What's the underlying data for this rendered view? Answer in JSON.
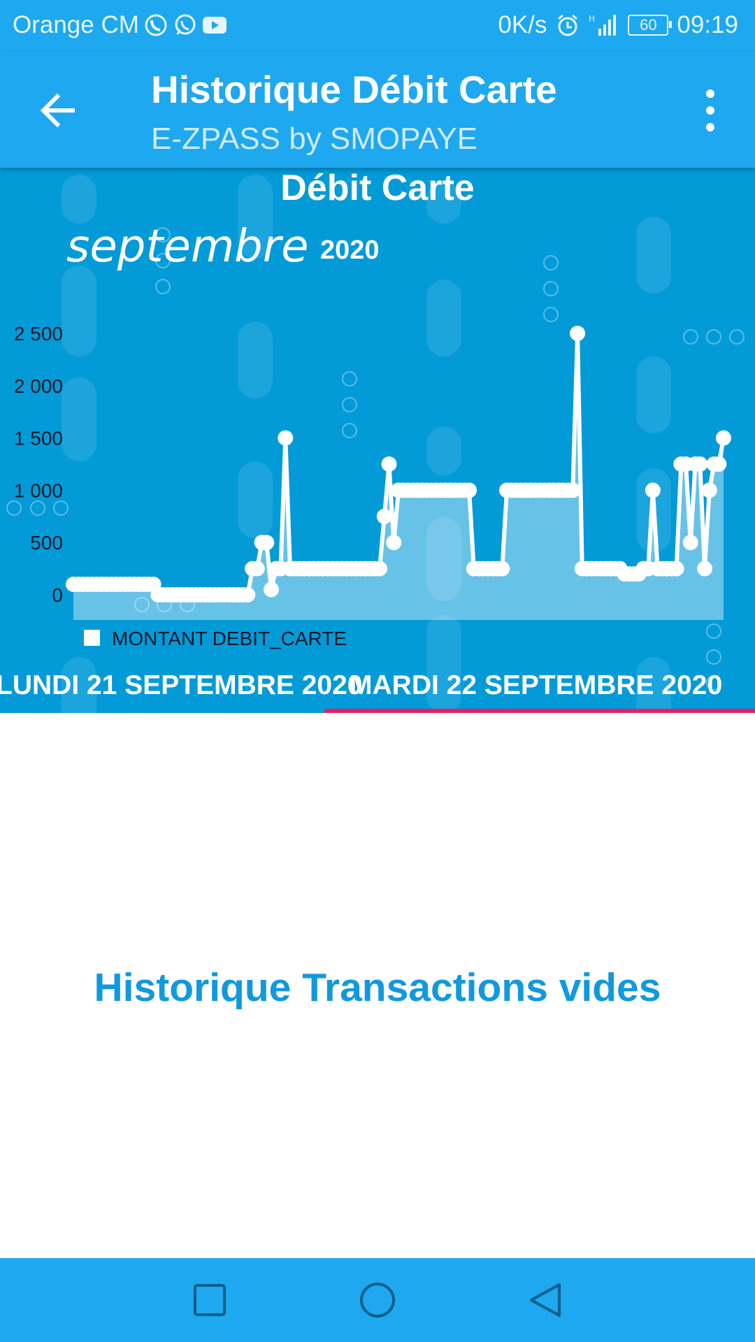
{
  "status_bar": {
    "carrier": "Orange CM",
    "speed": "0K/s",
    "network": "H",
    "battery": "60",
    "time": "09:19"
  },
  "app_bar": {
    "title": "Historique Débit Carte",
    "subtitle": "E-ZPASS by SMOPAYE"
  },
  "colors": {
    "primary": "#1ea8ef",
    "chart_background": "#039ad8",
    "tab_indicator": "#e91e63",
    "empty_text": "#1199de"
  },
  "chart_data": {
    "type": "area",
    "title": "Débit Carte",
    "month_label": "septembre",
    "year_label": "2020",
    "xlabel": "",
    "ylabel": "",
    "ylim": [
      0,
      2500
    ],
    "y_ticks": [
      "2 500",
      "2 000",
      "1 500",
      "1 000",
      "500",
      "0"
    ],
    "y_tick_values": [
      2500,
      2000,
      1500,
      1000,
      500,
      0
    ],
    "grid": false,
    "legend_position": "bottom-left",
    "series": [
      {
        "name": "MONTANT DEBIT_CARTE",
        "values": [
          100,
          100,
          100,
          100,
          100,
          100,
          100,
          100,
          100,
          100,
          100,
          100,
          100,
          100,
          100,
          100,
          100,
          100,
          0,
          0,
          0,
          0,
          0,
          0,
          0,
          0,
          0,
          0,
          0,
          0,
          0,
          0,
          0,
          0,
          0,
          0,
          0,
          0,
          250,
          250,
          500,
          500,
          50,
          250,
          250,
          1500,
          250,
          250,
          250,
          250,
          250,
          250,
          250,
          250,
          250,
          250,
          250,
          250,
          250,
          250,
          250,
          250,
          250,
          250,
          250,
          250,
          750,
          1250,
          500,
          1000,
          1000,
          1000,
          1000,
          1000,
          1000,
          1000,
          1000,
          1000,
          1000,
          1000,
          1000,
          1000,
          1000,
          1000,
          1000,
          250,
          250,
          250,
          250,
          250,
          250,
          250,
          1000,
          1000,
          1000,
          1000,
          1000,
          1000,
          1000,
          1000,
          1000,
          1000,
          1000,
          1000,
          1000,
          1000,
          1000,
          2500,
          250,
          250,
          250,
          250,
          250,
          250,
          250,
          250,
          250,
          200,
          200,
          200,
          200,
          250,
          250,
          1000,
          250,
          250,
          250,
          250,
          250,
          1250,
          1250,
          500,
          1250,
          1250,
          250,
          1000,
          1250,
          1250,
          1500
        ]
      }
    ]
  },
  "tabs": [
    {
      "label": "LUNDI 21 SEPTEMBRE 2020",
      "selected": false
    },
    {
      "label": "MARDI 22 SEPTEMBRE 2020",
      "selected": true
    }
  ],
  "main": {
    "empty_message": "Historique Transactions vides"
  },
  "nav_bar": {
    "icons": [
      "recent-apps-icon",
      "home-icon",
      "back-triangle-icon"
    ]
  }
}
